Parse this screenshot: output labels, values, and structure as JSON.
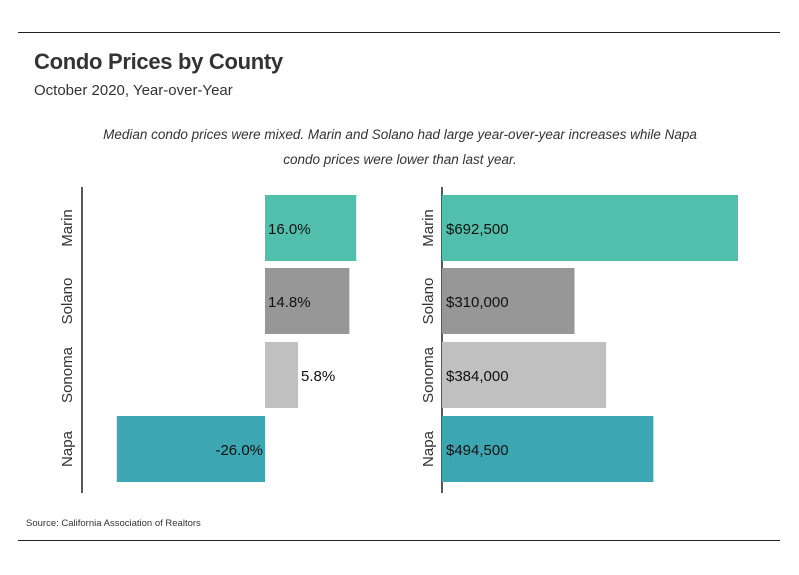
{
  "header": {
    "title": "Condo Prices by County",
    "subtitle": "October 2020, Year-over-Year",
    "annotation": "Median condo prices were mixed. Marin and Solano had large year-over-year increases while Napa condo prices were lower than last year."
  },
  "source": "Source:  California Association of Realtors",
  "colors": {
    "Marin": "#52bfac",
    "Solano": "#979797",
    "Sonoma": "#c0c0c0",
    "Napa": "#3ca6b2",
    "axis": "#222222",
    "text": "#222222"
  },
  "chart_data": [
    {
      "type": "bar",
      "orientation": "horizontal",
      "categories": [
        "Marin",
        "Solano",
        "Sonoma",
        "Napa"
      ],
      "values": [
        16.0,
        14.8,
        5.8,
        -26.0
      ],
      "labels": [
        "16.0%",
        "14.8%",
        "5.8%",
        "-26.0%"
      ],
      "xlim": [
        -26,
        16
      ],
      "grid": false
    },
    {
      "type": "bar",
      "orientation": "horizontal",
      "categories": [
        "Marin",
        "Solano",
        "Sonoma",
        "Napa"
      ],
      "values": [
        692500,
        310000,
        384000,
        494500
      ],
      "labels": [
        "$692,500",
        "$310,000",
        "$384,000",
        "$494,500"
      ],
      "xlim": [
        0,
        692500
      ],
      "grid": false
    }
  ]
}
